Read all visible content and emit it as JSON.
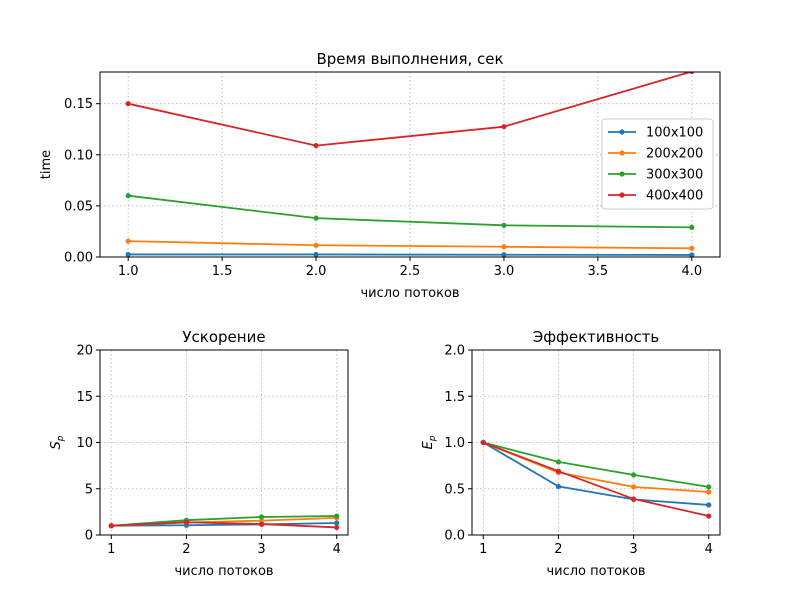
{
  "chart_data": [
    {
      "type": "line",
      "title": "Время выполнения, сек",
      "xlabel": "число потоков",
      "ylabel": "time",
      "xlim": [
        0.85,
        4.15
      ],
      "ylim": [
        0,
        0.181
      ],
      "xticks": [
        "1.0",
        "1.5",
        "2.0",
        "2.5",
        "3.0",
        "3.5",
        "4.0"
      ],
      "xtick_values": [
        1,
        1.5,
        2,
        2.5,
        3,
        3.5,
        4
      ],
      "yticks": [
        "0.00",
        "0.05",
        "0.10",
        "0.15"
      ],
      "ytick_values": [
        0,
        0.05,
        0.1,
        0.15
      ],
      "x": [
        1,
        2,
        3,
        4
      ],
      "grid": true,
      "legend_position": "center-right",
      "series": [
        {
          "name": "100x100",
          "color": "#1f77b4",
          "values": [
            0.0025,
            0.0025,
            0.0022,
            0.002
          ]
        },
        {
          "name": "200x200",
          "color": "#ff7f0e",
          "values": [
            0.0155,
            0.0115,
            0.01,
            0.0085
          ]
        },
        {
          "name": "300x300",
          "color": "#2ca02c",
          "values": [
            0.06,
            0.038,
            0.031,
            0.029
          ]
        },
        {
          "name": "400x400",
          "color": "#d62728",
          "values": [
            0.15,
            0.109,
            0.1275,
            0.1815
          ]
        }
      ]
    },
    {
      "type": "line",
      "title": "Ускорение",
      "xlabel": "число потоков",
      "ylabel": "S",
      "ylabel_sub": "p",
      "xlim": [
        0.85,
        4.15
      ],
      "ylim": [
        0,
        20
      ],
      "xticks": [
        "1",
        "2",
        "3",
        "4"
      ],
      "xtick_values": [
        1,
        2,
        3,
        4
      ],
      "yticks": [
        "0",
        "5",
        "10",
        "15",
        "20"
      ],
      "ytick_values": [
        0,
        5,
        10,
        15,
        20
      ],
      "x": [
        1,
        2,
        3,
        4
      ],
      "grid": true,
      "series": [
        {
          "color": "#1f77b4",
          "values": [
            1.0,
            1.05,
            1.15,
            1.3
          ]
        },
        {
          "color": "#ff7f0e",
          "values": [
            1.0,
            1.35,
            1.55,
            1.85
          ]
        },
        {
          "color": "#2ca02c",
          "values": [
            1.0,
            1.6,
            1.95,
            2.05
          ]
        },
        {
          "color": "#d62728",
          "values": [
            1.0,
            1.38,
            1.18,
            0.82
          ]
        }
      ]
    },
    {
      "type": "line",
      "title": "Эффективность",
      "xlabel": "число потоков",
      "ylabel": "E",
      "ylabel_sub": "p",
      "xlim": [
        0.85,
        4.15
      ],
      "ylim": [
        0,
        2.0
      ],
      "xticks": [
        "1",
        "2",
        "3",
        "4"
      ],
      "xtick_values": [
        1,
        2,
        3,
        4
      ],
      "yticks": [
        "0.0",
        "0.5",
        "1.0",
        "1.5",
        "2.0"
      ],
      "ytick_values": [
        0,
        0.5,
        1.0,
        1.5,
        2.0
      ],
      "x": [
        1,
        2,
        3,
        4
      ],
      "grid": true,
      "series": [
        {
          "color": "#1f77b4",
          "values": [
            1.0,
            0.525,
            0.385,
            0.325
          ]
        },
        {
          "color": "#ff7f0e",
          "values": [
            1.0,
            0.675,
            0.52,
            0.465
          ]
        },
        {
          "color": "#2ca02c",
          "values": [
            1.0,
            0.79,
            0.65,
            0.52
          ]
        },
        {
          "color": "#d62728",
          "values": [
            1.0,
            0.69,
            0.39,
            0.205
          ]
        }
      ]
    }
  ]
}
